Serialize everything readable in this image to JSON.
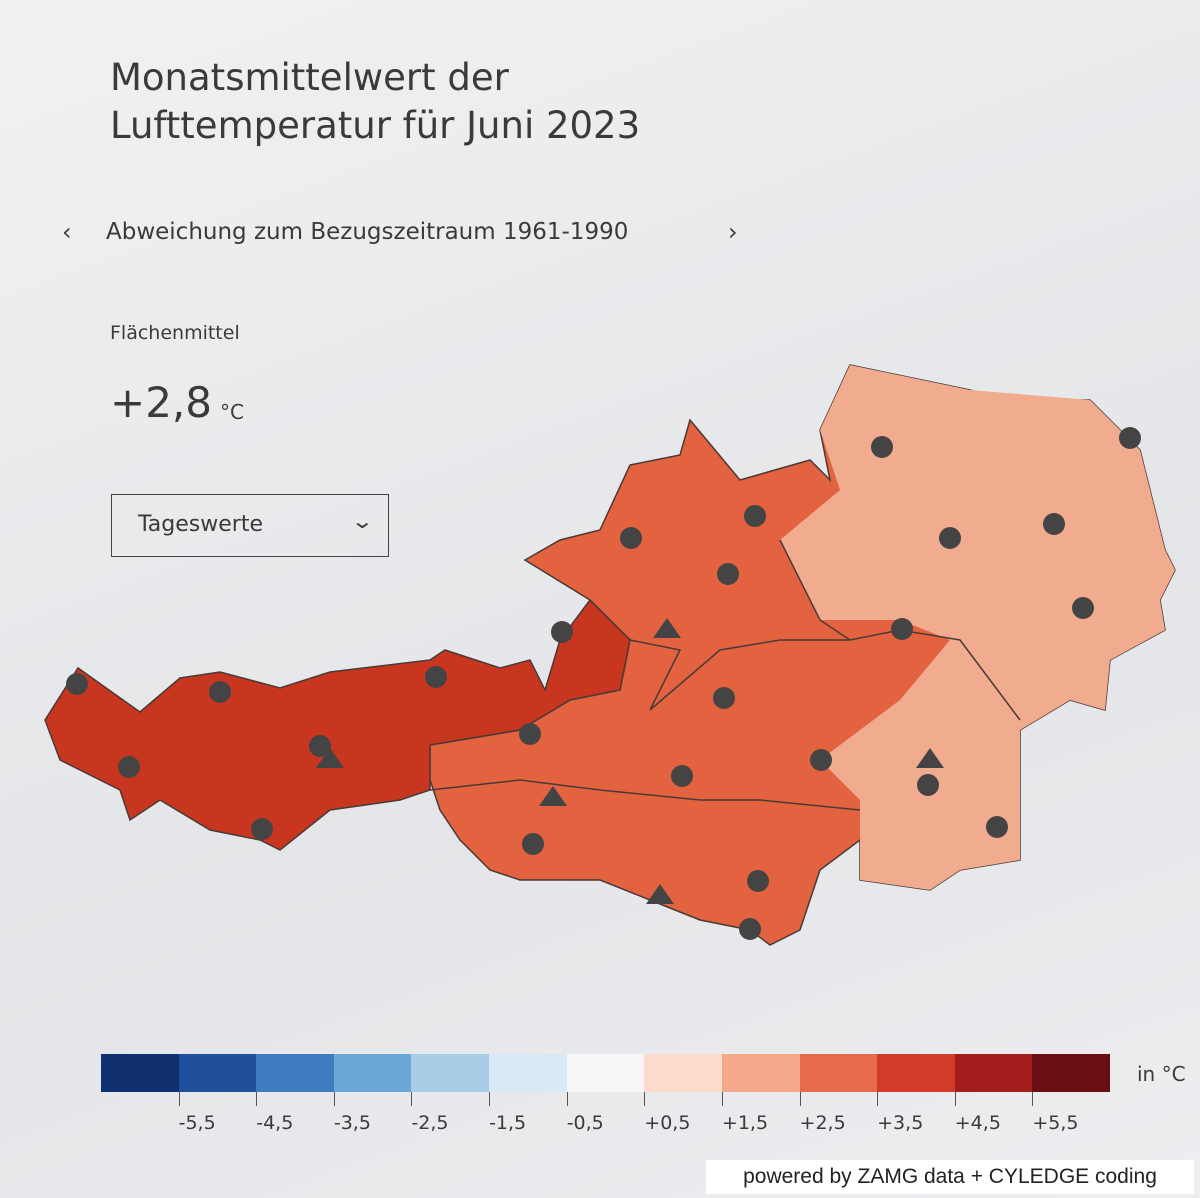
{
  "header": {
    "title": [
      "Monatsmittelwert der",
      "Lufttemperatur für Juni 2023"
    ]
  },
  "selector": {
    "label": "Abweichung zum Bezugszeitraum 1961-1990"
  },
  "area_mean": {
    "label": "Flächenmittel",
    "value": "+2,8",
    "unit": "°C"
  },
  "dropdown": {
    "label": "Tageswerte"
  },
  "legend": {
    "colors": [
      "#10306f",
      "#1f4f9a",
      "#3d7cc0",
      "#6aa7d6",
      "#a8cce6",
      "#d8e8f4",
      "#f6f6f6",
      "#fbdccc",
      "#f4a98a",
      "#e9694d",
      "#d13b2a",
      "#a31d1d",
      "#6b0e13"
    ],
    "ticks": [
      "-5,5",
      "-4,5",
      "-3,5",
      "-2,5",
      "-1,5",
      "-0,5",
      "+0,5",
      "+1,5",
      "+2,5",
      "+3,5",
      "+4,5",
      "+5,5"
    ],
    "unit": "in °C"
  },
  "footer": "powered by ZAMG data + CYLEDGE coding"
}
